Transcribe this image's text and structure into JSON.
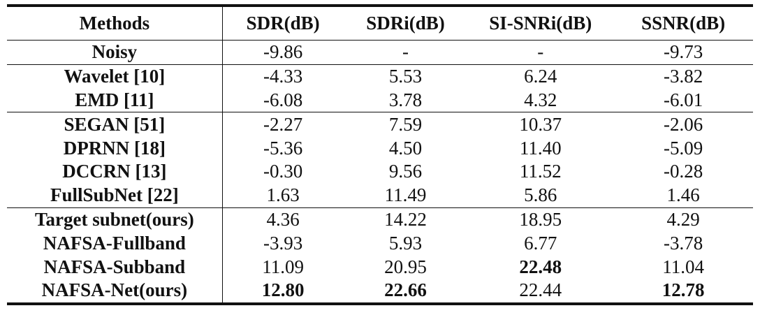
{
  "table": {
    "headers": [
      "Methods",
      "SDR(dB)",
      "SDRi(dB)",
      "SI-SNRi(dB)",
      "SSNR(dB)"
    ],
    "rows": [
      {
        "method": "Noisy",
        "values": [
          "-9.86",
          "-",
          "-",
          "-9.73"
        ],
        "bold": [
          false,
          false,
          false,
          false
        ]
      },
      {
        "method": "Wavelet [10]",
        "values": [
          "-4.33",
          "5.53",
          "6.24",
          "-3.82"
        ],
        "bold": [
          false,
          false,
          false,
          false
        ]
      },
      {
        "method": "EMD [11]",
        "values": [
          "-6.08",
          "3.78",
          "4.32",
          "-6.01"
        ],
        "bold": [
          false,
          false,
          false,
          false
        ]
      },
      {
        "method": "SEGAN [51]",
        "values": [
          "-2.27",
          "7.59",
          "10.37",
          "-2.06"
        ],
        "bold": [
          false,
          false,
          false,
          false
        ]
      },
      {
        "method": "DPRNN [18]",
        "values": [
          "-5.36",
          "4.50",
          "11.40",
          "-5.09"
        ],
        "bold": [
          false,
          false,
          false,
          false
        ]
      },
      {
        "method": "DCCRN [13]",
        "values": [
          "-0.30",
          "9.56",
          "11.52",
          "-0.28"
        ],
        "bold": [
          false,
          false,
          false,
          false
        ]
      },
      {
        "method": "FullSubNet [22]",
        "values": [
          "1.63",
          "11.49",
          "5.86",
          "1.46"
        ],
        "bold": [
          false,
          false,
          false,
          false
        ]
      },
      {
        "method": "Target subnet(ours)",
        "values": [
          "4.36",
          "14.22",
          "18.95",
          "4.29"
        ],
        "bold": [
          false,
          false,
          false,
          false
        ]
      },
      {
        "method": "NAFSA-Fullband",
        "values": [
          "-3.93",
          "5.93",
          "6.77",
          "-3.78"
        ],
        "bold": [
          false,
          false,
          false,
          false
        ]
      },
      {
        "method": "NAFSA-Subband",
        "values": [
          "11.09",
          "20.95",
          "22.48",
          "11.04"
        ],
        "bold": [
          false,
          false,
          true,
          false
        ]
      },
      {
        "method": "NAFSA-Net(ours)",
        "values": [
          "12.80",
          "22.66",
          "22.44",
          "12.78"
        ],
        "bold": [
          true,
          true,
          false,
          true
        ]
      }
    ]
  }
}
